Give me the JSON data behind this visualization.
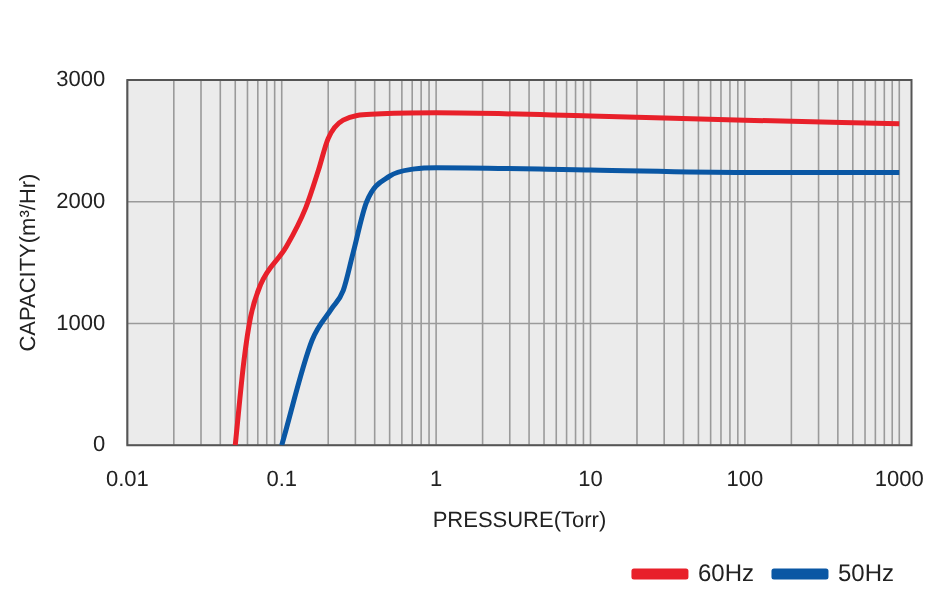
{
  "chart_data": {
    "type": "line",
    "xlabel": "PRESSURE(Torr)",
    "ylabel": "CAPACITY(m³/Hr)",
    "log": "x",
    "xlim": [
      0.01,
      1200
    ],
    "xticks": [
      0.01,
      0.1,
      1,
      10,
      100,
      1000
    ],
    "ylim": [
      0,
      3000
    ],
    "yticks": [
      0,
      1000,
      2000,
      3000
    ],
    "grid": true,
    "legend": "bottom right",
    "marker": "none",
    "line_style": "solid",
    "series": [
      {
        "name": "60Hz",
        "color": "#e8202a",
        "x": [
          0.05,
          0.057,
          0.063,
          0.073,
          0.107,
          0.143,
          0.173,
          0.2,
          0.25,
          0.41,
          1,
          10,
          100,
          1000
        ],
        "values": [
          0,
          700,
          1060,
          1320,
          1630,
          1950,
          2260,
          2520,
          2670,
          2720,
          2730,
          2705,
          2670,
          2640
        ]
      },
      {
        "name": "50Hz",
        "color": "#0a57a4",
        "x": [
          0.1,
          0.157,
          0.21,
          0.25,
          0.29,
          0.355,
          0.5,
          0.73,
          1,
          10,
          100,
          1000
        ],
        "values": [
          0,
          860,
          1120,
          1270,
          1580,
          2000,
          2210,
          2270,
          2280,
          2260,
          2240,
          2240
        ]
      }
    ]
  }
}
